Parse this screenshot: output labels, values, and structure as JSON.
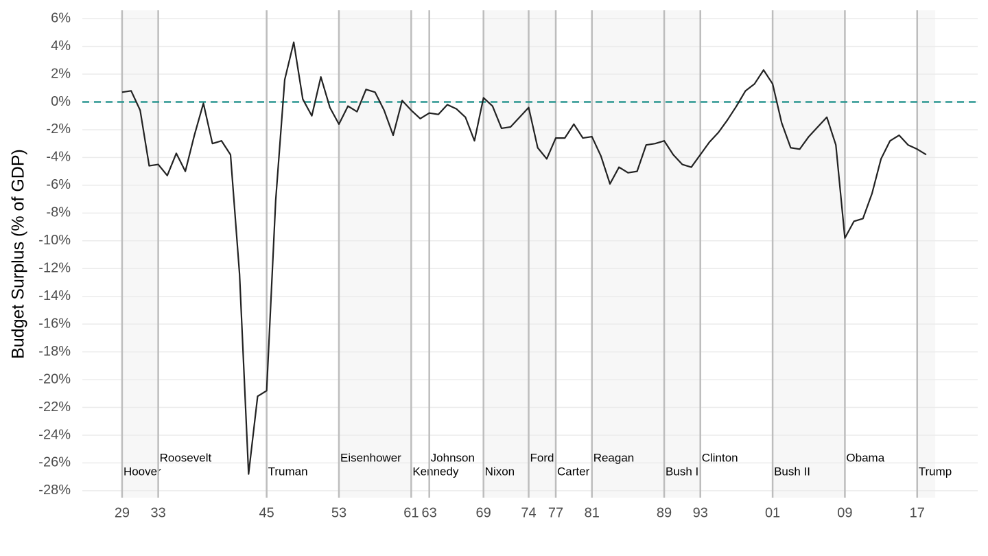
{
  "chart_data": {
    "type": "line",
    "y_axis_label": "Budget Surplus (% of GDP)",
    "x": [
      1929,
      1930,
      1931,
      1932,
      1933,
      1934,
      1935,
      1936,
      1937,
      1938,
      1939,
      1940,
      1941,
      1942,
      1943,
      1944,
      1945,
      1946,
      1947,
      1948,
      1949,
      1950,
      1951,
      1952,
      1953,
      1954,
      1955,
      1956,
      1957,
      1958,
      1959,
      1960,
      1961,
      1962,
      1963,
      1964,
      1965,
      1966,
      1967,
      1968,
      1969,
      1970,
      1971,
      1972,
      1973,
      1974,
      1975,
      1976,
      1977,
      1978,
      1979,
      1980,
      1981,
      1982,
      1983,
      1984,
      1985,
      1986,
      1987,
      1988,
      1989,
      1990,
      1991,
      1992,
      1993,
      1994,
      1995,
      1996,
      1997,
      1998,
      1999,
      2000,
      2001,
      2002,
      2003,
      2004,
      2005,
      2006,
      2007,
      2008,
      2009,
      2010,
      2011,
      2012,
      2013,
      2014,
      2015,
      2016,
      2017,
      2018
    ],
    "series": [
      {
        "color": "#222222",
        "values": [
          0.7,
          0.8,
          -0.6,
          -4.6,
          -4.5,
          -5.3,
          -3.7,
          -5.0,
          -2.4,
          -0.1,
          -3.0,
          -2.8,
          -3.8,
          -12.4,
          -26.8,
          -21.2,
          -20.8,
          -7.1,
          1.6,
          4.3,
          0.2,
          -1.0,
          1.8,
          -0.4,
          -1.6,
          -0.3,
          -0.7,
          0.9,
          0.7,
          -0.6,
          -2.4,
          0.1,
          -0.6,
          -1.2,
          -0.8,
          -0.9,
          -0.2,
          -0.5,
          -1.1,
          -2.8,
          0.3,
          -0.3,
          -1.9,
          -1.8,
          -1.1,
          -0.4,
          -3.3,
          -4.1,
          -2.6,
          -2.6,
          -1.6,
          -2.6,
          -2.5,
          -3.9,
          -5.9,
          -4.7,
          -5.1,
          -5.0,
          -3.1,
          -3.0,
          -2.8,
          -3.8,
          -4.5,
          -4.7,
          -3.8,
          -2.9,
          -2.2,
          -1.3,
          -0.3,
          0.8,
          1.3,
          2.3,
          1.3,
          -1.5,
          -3.3,
          -3.4,
          -2.5,
          -1.8,
          -1.1,
          -3.1,
          -9.8,
          -8.6,
          -8.4,
          -6.6,
          -4.1,
          -2.8,
          -2.4,
          -3.1,
          -3.4,
          -3.8
        ]
      }
    ],
    "reference_line": {
      "value": 0,
      "color": "#2a9690"
    },
    "presidents": [
      {
        "name": "Hoover",
        "start": 1929,
        "end": 1933,
        "shaded": true
      },
      {
        "name": "Roosevelt",
        "start": 1933,
        "end": 1945,
        "shaded": false
      },
      {
        "name": "Truman",
        "start": 1945,
        "end": 1953,
        "shaded": false
      },
      {
        "name": "Eisenhower",
        "start": 1953,
        "end": 1961,
        "shaded": true
      },
      {
        "name": "Kennedy",
        "start": 1961,
        "end": 1963,
        "shaded": false
      },
      {
        "name": "Johnson",
        "start": 1963,
        "end": 1969,
        "shaded": false
      },
      {
        "name": "Nixon",
        "start": 1969,
        "end": 1974,
        "shaded": true
      },
      {
        "name": "Ford",
        "start": 1974,
        "end": 1977,
        "shaded": true
      },
      {
        "name": "Carter",
        "start": 1977,
        "end": 1981,
        "shaded": false
      },
      {
        "name": "Reagan",
        "start": 1981,
        "end": 1989,
        "shaded": true
      },
      {
        "name": "Bush I",
        "start": 1989,
        "end": 1993,
        "shaded": true
      },
      {
        "name": "Clinton",
        "start": 1993,
        "end": 2001,
        "shaded": false
      },
      {
        "name": "Bush II",
        "start": 2001,
        "end": 2009,
        "shaded": true
      },
      {
        "name": "Obama",
        "start": 2009,
        "end": 2017,
        "shaded": false
      },
      {
        "name": "Trump",
        "start": 2017,
        "end": 2019,
        "shaded": true
      }
    ],
    "xlim": [
      1924.6,
      2023.7
    ],
    "xticks": [
      {
        "value": 1929,
        "label": "29"
      },
      {
        "value": 1933,
        "label": "33"
      },
      {
        "value": 1945,
        "label": "45"
      },
      {
        "value": 1953,
        "label": "53"
      },
      {
        "value": 1961,
        "label": "61"
      },
      {
        "value": 1963,
        "label": "63"
      },
      {
        "value": 1969,
        "label": "69"
      },
      {
        "value": 1974,
        "label": "74"
      },
      {
        "value": 1977,
        "label": "77"
      },
      {
        "value": 1981,
        "label": "81"
      },
      {
        "value": 1989,
        "label": "89"
      },
      {
        "value": 1993,
        "label": "93"
      },
      {
        "value": 2001,
        "label": "01"
      },
      {
        "value": 2009,
        "label": "09"
      },
      {
        "value": 2017,
        "label": "17"
      }
    ],
    "ylim": [
      -28.5,
      6.6
    ],
    "yticks": [
      {
        "value": 6,
        "label": "6%"
      },
      {
        "value": 4,
        "label": "4%"
      },
      {
        "value": 2,
        "label": "2%"
      },
      {
        "value": 0,
        "label": "0%"
      },
      {
        "value": -2,
        "label": "-2%"
      },
      {
        "value": -4,
        "label": "-4%"
      },
      {
        "value": -6,
        "label": "-6%"
      },
      {
        "value": -8,
        "label": "-8%"
      },
      {
        "value": -10,
        "label": "-10%"
      },
      {
        "value": -12,
        "label": "-12%"
      },
      {
        "value": -14,
        "label": "-14%"
      },
      {
        "value": -16,
        "label": "-16%"
      },
      {
        "value": -18,
        "label": "-18%"
      },
      {
        "value": -20,
        "label": "-20%"
      },
      {
        "value": -22,
        "label": "-22%"
      },
      {
        "value": -24,
        "label": "-24%"
      },
      {
        "value": -26,
        "label": "-26%"
      },
      {
        "value": -28,
        "label": "-28%"
      }
    ],
    "grid": true
  }
}
